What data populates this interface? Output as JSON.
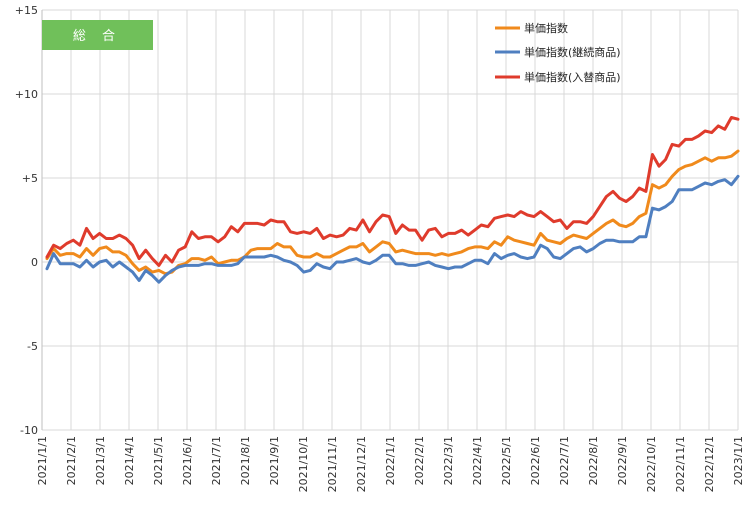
{
  "chart_data": {
    "type": "line",
    "title": "総 合",
    "title_box_color": "#70c05a",
    "ylim": [
      -10,
      15
    ],
    "y_ticks": [
      {
        "value": 15,
        "label": "+15"
      },
      {
        "value": 10,
        "label": "+10"
      },
      {
        "value": 5,
        "label": "+5"
      },
      {
        "value": 0,
        "label": "0"
      },
      {
        "value": -5,
        "label": "-5"
      },
      {
        "value": -10,
        "label": "-10"
      }
    ],
    "x_tick_labels": [
      "2021/1/1",
      "2021/2/1",
      "2021/3/1",
      "2021/4/1",
      "2021/5/1",
      "2021/6/1",
      "2021/7/1",
      "2021/8/1",
      "2021/9/1",
      "2021/10/1",
      "2021/11/1",
      "2021/12/1",
      "2022/1/1",
      "2022/2/1",
      "2022/3/1",
      "2022/4/1",
      "2022/5/1",
      "2022/6/1",
      "2022/7/1",
      "2022/8/1",
      "2022/9/1",
      "2022/10/1",
      "2022/11/1",
      "2022/12/1",
      "2023/1/1"
    ],
    "legend_position": "top-right",
    "series": [
      {
        "name": "単価指数",
        "color": "#f08a1c",
        "values": [
          0.2,
          0.8,
          0.4,
          0.5,
          0.5,
          0.3,
          0.8,
          0.4,
          0.8,
          0.9,
          0.6,
          0.6,
          0.4,
          -0.1,
          -0.5,
          -0.3,
          -0.6,
          -0.5,
          -0.7,
          -0.6,
          -0.2,
          -0.1,
          0.2,
          0.2,
          0.1,
          0.3,
          -0.1,
          0.0,
          0.1,
          0.1,
          0.3,
          0.7,
          0.8,
          0.8,
          0.8,
          1.1,
          0.9,
          0.9,
          0.4,
          0.3,
          0.3,
          0.5,
          0.3,
          0.3,
          0.5,
          0.7,
          0.9,
          0.9,
          1.1,
          0.6,
          0.9,
          1.2,
          1.1,
          0.6,
          0.7,
          0.6,
          0.5,
          0.5,
          0.5,
          0.4,
          0.5,
          0.4,
          0.5,
          0.6,
          0.8,
          0.9,
          0.9,
          0.8,
          1.2,
          1.0,
          1.5,
          1.3,
          1.2,
          1.1,
          1.0,
          1.7,
          1.3,
          1.2,
          1.1,
          1.4,
          1.6,
          1.5,
          1.4,
          1.7,
          2.0,
          2.3,
          2.5,
          2.2,
          2.1,
          2.3,
          2.7,
          2.9,
          4.6,
          4.4,
          4.6,
          5.1,
          5.5,
          5.7,
          5.8,
          6.0,
          6.2,
          6.0,
          6.2,
          6.2,
          6.3,
          6.6
        ]
      },
      {
        "name": "単価指数(継続商品)",
        "color": "#4f7fc0",
        "values": [
          -0.4,
          0.5,
          -0.1,
          -0.1,
          -0.1,
          -0.3,
          0.1,
          -0.3,
          0.0,
          0.1,
          -0.3,
          0.0,
          -0.3,
          -0.6,
          -1.1,
          -0.5,
          -0.8,
          -1.2,
          -0.8,
          -0.5,
          -0.3,
          -0.2,
          -0.2,
          -0.2,
          -0.1,
          -0.1,
          -0.2,
          -0.2,
          -0.2,
          -0.1,
          0.3,
          0.3,
          0.3,
          0.3,
          0.4,
          0.3,
          0.1,
          0.0,
          -0.2,
          -0.6,
          -0.5,
          -0.1,
          -0.3,
          -0.4,
          0.0,
          0.0,
          0.1,
          0.2,
          0.0,
          -0.1,
          0.1,
          0.4,
          0.4,
          -0.1,
          -0.1,
          -0.2,
          -0.2,
          -0.1,
          0.0,
          -0.2,
          -0.3,
          -0.4,
          -0.3,
          -0.3,
          -0.1,
          0.1,
          0.1,
          -0.1,
          0.5,
          0.2,
          0.4,
          0.5,
          0.3,
          0.2,
          0.3,
          1.0,
          0.8,
          0.3,
          0.2,
          0.5,
          0.8,
          0.9,
          0.6,
          0.8,
          1.1,
          1.3,
          1.3,
          1.2,
          1.2,
          1.2,
          1.5,
          1.5,
          3.2,
          3.1,
          3.3,
          3.6,
          4.3,
          4.3,
          4.3,
          4.5,
          4.7,
          4.6,
          4.8,
          4.9,
          4.6,
          5.1
        ]
      },
      {
        "name": "単価指数(入替商品)",
        "color": "#df3b2c",
        "values": [
          0.3,
          1.0,
          0.8,
          1.1,
          1.3,
          1.0,
          2.0,
          1.4,
          1.7,
          1.4,
          1.4,
          1.6,
          1.4,
          1.0,
          0.2,
          0.7,
          0.2,
          -0.2,
          0.4,
          0.0,
          0.7,
          0.9,
          1.8,
          1.4,
          1.5,
          1.5,
          1.2,
          1.5,
          2.1,
          1.8,
          2.3,
          2.3,
          2.3,
          2.2,
          2.5,
          2.4,
          2.4,
          1.8,
          1.7,
          1.8,
          1.7,
          2.0,
          1.4,
          1.6,
          1.5,
          1.6,
          2.0,
          1.9,
          2.5,
          1.8,
          2.4,
          2.8,
          2.7,
          1.7,
          2.2,
          1.9,
          1.9,
          1.3,
          1.9,
          2.0,
          1.5,
          1.7,
          1.7,
          1.9,
          1.6,
          1.9,
          2.2,
          2.1,
          2.6,
          2.7,
          2.8,
          2.7,
          3.0,
          2.8,
          2.7,
          3.0,
          2.7,
          2.4,
          2.5,
          2.0,
          2.4,
          2.4,
          2.3,
          2.7,
          3.3,
          3.9,
          4.2,
          3.8,
          3.6,
          3.9,
          4.4,
          4.2,
          6.4,
          5.7,
          6.1,
          7.0,
          6.9,
          7.3,
          7.3,
          7.5,
          7.8,
          7.7,
          8.1,
          7.9,
          8.6,
          8.5
        ]
      }
    ]
  }
}
